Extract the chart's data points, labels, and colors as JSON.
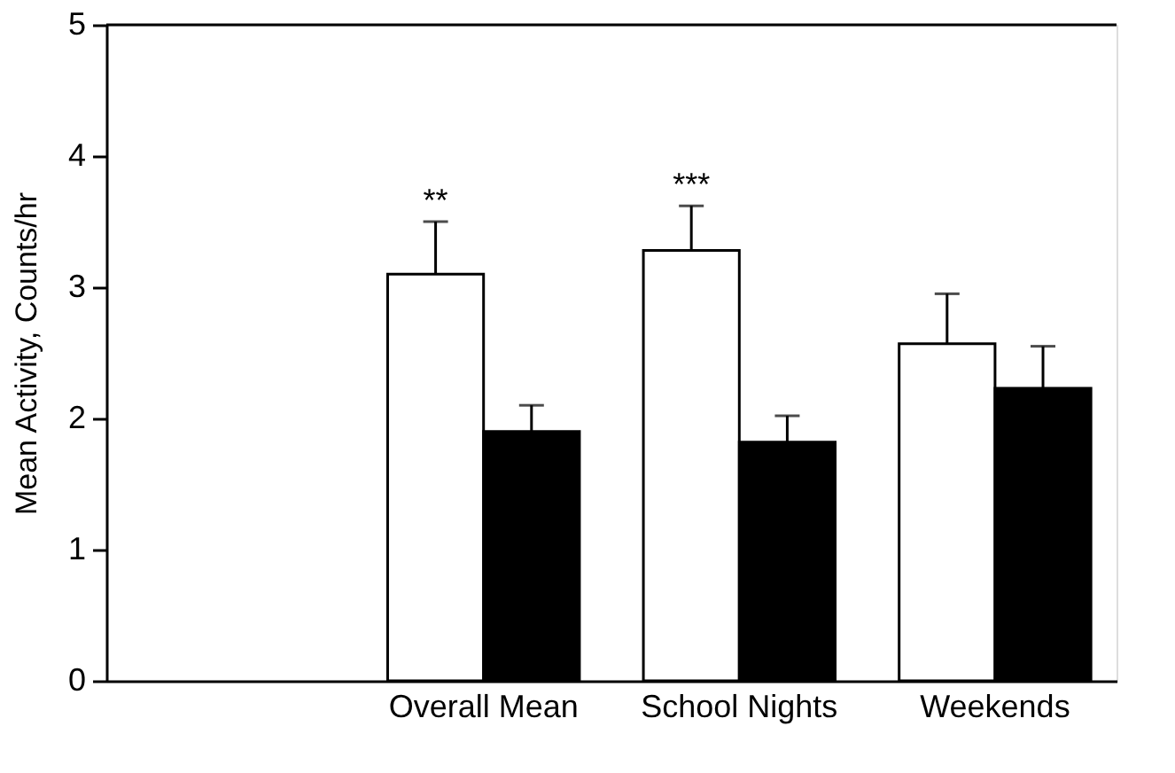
{
  "chart_data": {
    "type": "bar",
    "ylabel": "Mean Activity, Counts/hr",
    "categories": [
      null,
      "Overall Mean",
      "School Nights",
      "Weekends"
    ],
    "series": [
      {
        "color": "#ffffff",
        "values": [
          null,
          3.1,
          3.28,
          2.57
        ],
        "errors": [
          null,
          [
            3.1,
            3.5
          ],
          [
            3.28,
            3.62
          ],
          [
            2.57,
            2.95
          ]
        ]
      },
      {
        "color": "#000000",
        "values": [
          null,
          1.9,
          1.82,
          2.23
        ],
        "errors": [
          null,
          [
            1.9,
            2.1
          ],
          [
            1.82,
            2.02
          ],
          [
            2.23,
            2.55
          ]
        ]
      }
    ],
    "annotations": [
      "**",
      "***"
    ],
    "ylim": [
      0,
      5
    ],
    "yticks": [
      0,
      1,
      2,
      3,
      4,
      5
    ],
    "grid": false,
    "legend": false
  }
}
